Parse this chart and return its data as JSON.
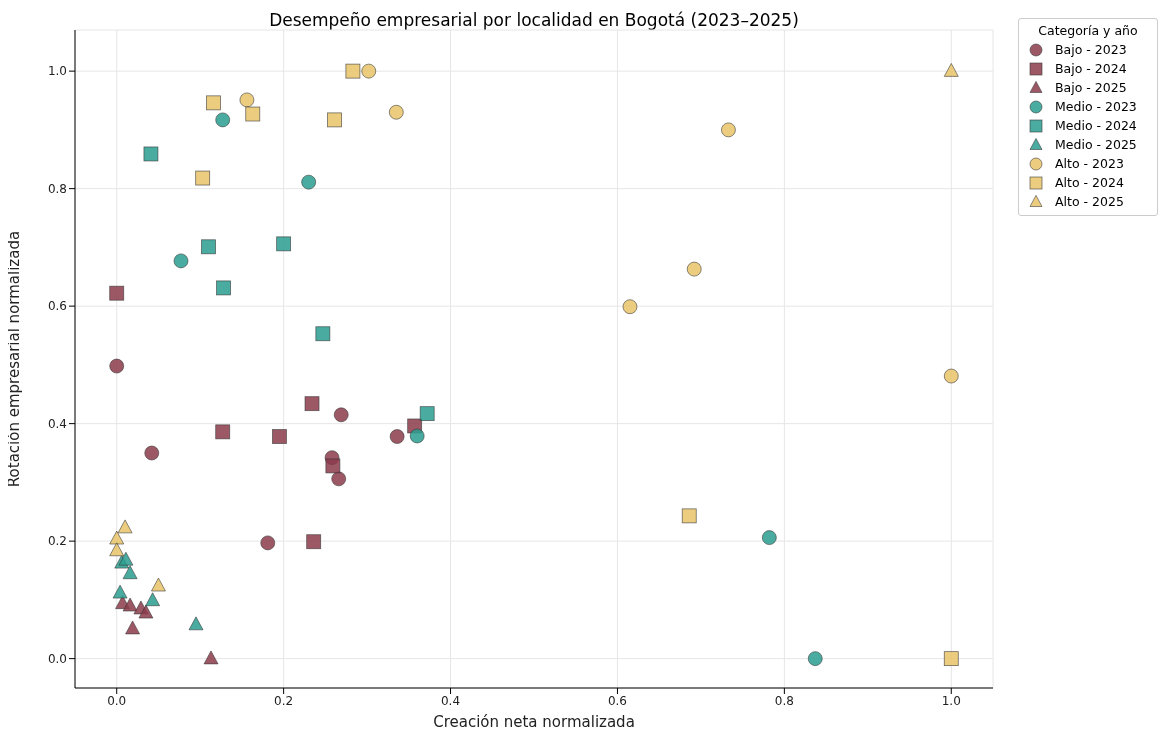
{
  "chart_data": {
    "type": "scatter",
    "title": "Desempeño empresarial por localidad en Bogotá (2023–2025)",
    "xlabel": "Creación neta normalizada",
    "ylabel": "Rotación empresarial normalizada",
    "legend_title": "Categoría y año",
    "legend": "top right",
    "grid": true,
    "xlim": [
      -0.05,
      1.05
    ],
    "ylim": [
      -0.05,
      1.07
    ],
    "xticks": [
      {
        "value": 0,
        "label": "0.0"
      },
      {
        "value": 0.2,
        "label": "0.2"
      },
      {
        "value": 0.4,
        "label": "0.4"
      },
      {
        "value": 0.6,
        "label": "0.6"
      },
      {
        "value": 0.8,
        "label": "0.8"
      },
      {
        "value": 1,
        "label": "1.0"
      }
    ],
    "yticks": [
      {
        "value": 0,
        "label": "0.0"
      },
      {
        "value": 0.2,
        "label": "0.2"
      },
      {
        "value": 0.4,
        "label": "0.4"
      },
      {
        "value": 0.6,
        "label": "0.6"
      },
      {
        "value": 0.8,
        "label": "0.8"
      },
      {
        "value": 1,
        "label": "1.0"
      }
    ],
    "series": [
      {
        "name": "Bajo - 2023",
        "color": "#8c3b4b",
        "marker": "circle",
        "x": [
          0,
          0.042,
          0.181,
          0.269,
          0.258,
          0.266,
          0.336
        ],
        "values": [
          0.498,
          0.35,
          0.197,
          0.415,
          0.342,
          0.306,
          0.378
        ]
      },
      {
        "name": "Bajo - 2024",
        "color": "#8c3b4b",
        "marker": "square",
        "x": [
          0,
          0.127,
          0.195,
          0.234,
          0.236,
          0.259,
          0.357
        ],
        "values": [
          0.622,
          0.386,
          0.378,
          0.434,
          0.199,
          0.328,
          0.396
        ]
      },
      {
        "name": "Bajo - 2025",
        "color": "#8c3b4b",
        "marker": "triangle",
        "x": [
          0.007,
          0.016,
          0.029,
          0.035,
          0.019,
          0.113
        ],
        "values": [
          0.094,
          0.09,
          0.085,
          0.078,
          0.051,
          0
        ]
      },
      {
        "name": "Medio - 2023",
        "color": "#2a9d8f",
        "marker": "circle",
        "x": [
          0.077,
          0.127,
          0.23,
          0.36,
          0.782,
          0.837
        ],
        "values": [
          0.677,
          0.917,
          0.811,
          0.379,
          0.206,
          0
        ]
      },
      {
        "name": "Medio - 2024",
        "color": "#2a9d8f",
        "marker": "square",
        "x": [
          0.041,
          0.11,
          0.128,
          0.2,
          0.247,
          0.372
        ],
        "values": [
          0.859,
          0.701,
          0.631,
          0.706,
          0.553,
          0.417
        ]
      },
      {
        "name": "Medio - 2025",
        "color": "#2a9d8f",
        "marker": "triangle",
        "x": [
          0.006,
          0.011,
          0.016,
          0.004,
          0.043,
          0.095
        ],
        "values": [
          0.163,
          0.168,
          0.145,
          0.112,
          0.099,
          0.058
        ]
      },
      {
        "name": "Alto - 2023",
        "color": "#e9c46a",
        "marker": "circle",
        "x": [
          0.156,
          0.302,
          0.335,
          0.733,
          0.692,
          0.615,
          1
        ],
        "values": [
          0.951,
          1,
          0.93,
          0.9,
          0.663,
          0.599,
          0.481
        ]
      },
      {
        "name": "Alto - 2024",
        "color": "#e9c46a",
        "marker": "square",
        "x": [
          0.116,
          0.163,
          0.103,
          0.283,
          0.261,
          0.686,
          1
        ],
        "values": [
          0.946,
          0.927,
          0.818,
          1,
          0.917,
          0.243,
          0
        ]
      },
      {
        "name": "Alto - 2025",
        "color": "#e9c46a",
        "marker": "triangle",
        "x": [
          1,
          0.01,
          0,
          0,
          0.05
        ],
        "values": [
          1,
          0.223,
          0.204,
          0.184,
          0.124
        ]
      }
    ]
  }
}
